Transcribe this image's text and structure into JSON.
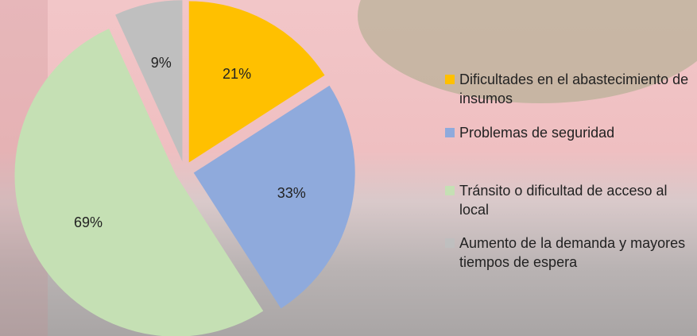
{
  "chart_data": {
    "type": "pie",
    "categories": [
      "Dificultades en el abastecimiento de insumos",
      "Problemas de seguridad",
      "Tránsito o dificultad de acceso al local",
      "Aumento de la demanda y mayores tiempos de espera"
    ],
    "values": [
      21,
      33,
      69,
      9
    ],
    "value_labels": [
      "21%",
      "33%",
      "69%",
      "9%"
    ],
    "colors": [
      "#FFC000",
      "#8FAADC",
      "#C5E0B4",
      "#BFBFBF"
    ],
    "legend": "right"
  }
}
